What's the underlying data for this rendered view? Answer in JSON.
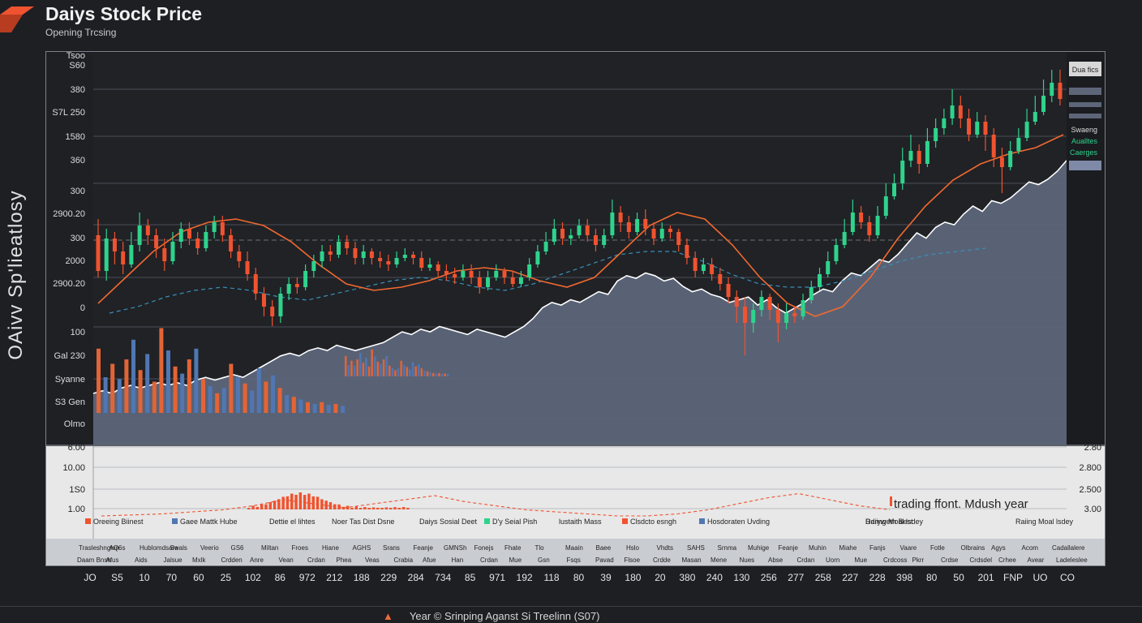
{
  "header": {
    "title": "Daiys Stock Price",
    "subtitle": "Opening Trcsing",
    "side_label": "OAivv Sp'lieatlosy"
  },
  "colors": {
    "background": "#1d1f23",
    "up": "#2fd38c",
    "down": "#f0532f",
    "ma": "#f2692f",
    "area": "#5d6679",
    "volume_up": "#5077b3",
    "volume_down": "#e36436",
    "dashed": "#3a8fb7"
  },
  "axes": {
    "y_main_labels": [
      "Tsoo",
      "S60",
      "380",
      "S7L 250",
      "1580",
      "360",
      "300",
      "2900.20",
      "300",
      "2000",
      "2900.20",
      "0",
      "100",
      "Gal 230",
      "Syanne",
      "S3 Gen",
      "Olmo"
    ],
    "y_lower_labels": [
      "6.00",
      "10.00",
      "1S0",
      "1.00"
    ],
    "y_lower_right_labels": [
      "2.80",
      "2.800",
      "2.500",
      "3.00"
    ],
    "x_labels": [
      "JO",
      "S5",
      "10",
      "70",
      "60",
      "25",
      "102",
      "86",
      "972",
      "212",
      "188",
      "229",
      "284",
      "734",
      "85",
      "971",
      "192",
      "118",
      "80",
      "39",
      "180",
      "20",
      "380",
      "240",
      "130",
      "256",
      "277",
      "258",
      "227",
      "228",
      "398",
      "80",
      "50",
      "201",
      "FNP",
      "UO",
      "CO"
    ]
  },
  "right_panel": {
    "tag": "Dua fics",
    "items": [
      "Swaeng",
      "Aualltes",
      "Caerges"
    ]
  },
  "lower_panel": {
    "note": "trading ffont. Mdush year",
    "note_small": "Ddryweth Best",
    "legend": [
      {
        "label": "Oreeing Biinest",
        "color": "#f0532f"
      },
      {
        "label": "Gaee Mattk Hube",
        "color": "#5077b3"
      },
      {
        "label": "Dettie el lihtes",
        "color": "#e6e6e6"
      },
      {
        "label": "Noer Tas Dist Dsne",
        "color": "#e6e6e6"
      },
      {
        "label": "Daiys Sosial Deet",
        "color": "#e6e6e6"
      },
      {
        "label": "D'y Seial Pish",
        "color": "#2fd38c"
      },
      {
        "label": "lustaith Mass",
        "color": "#e6e6e6"
      },
      {
        "label": "Clsdcto esngh",
        "color": "#f0532f"
      },
      {
        "label": "Hosdoraten Uvding",
        "color": "#5077b3"
      },
      {
        "label": "Raiing Moal lsdey",
        "color": "#e6e6e6"
      }
    ],
    "table_row1": [
      "Trasleshnglan",
      "AQ6s",
      "Hublomdsare",
      "Swals",
      "Veerio",
      "GS6",
      "Miltan",
      "Froes",
      "Hiane",
      "AGHS",
      "Srans",
      "Feanje",
      "GMNSh",
      "Fonejs",
      "Fhate",
      "Tlo",
      "Maain",
      "Baee",
      "Hslo",
      "Vhdts",
      "SAHS",
      "Srnma",
      "Muhige",
      "Feanje",
      "Muhin",
      "Miahe",
      "Fanjs",
      "Vaare",
      "Fotle",
      "Olbrains",
      "Agys",
      "Acom",
      "Cadallalere"
    ],
    "table_row2": [
      "Daam Bnsh",
      "Afus",
      "Aids",
      "Jalsue",
      "Mxlk",
      "Crdden",
      "Anre",
      "Vean",
      "Crdan",
      "Phea",
      "Veas",
      "Crabia",
      "Afue",
      "Han",
      "Crdan",
      "Mue",
      "Gsn",
      "Fsqs",
      "Pavad",
      "Flsoe",
      "Crdde",
      "Masan",
      "Mene",
      "Nues",
      "Abse",
      "Crdan",
      "Uorn",
      "Mue",
      "Crdcoss",
      "Pkrr",
      "Crdse",
      "Crdsdel",
      "Crhee",
      "Avear",
      "Ladeleslee"
    ]
  },
  "footer": {
    "text": "Year © Srinping Aganst Si Treelinn (S07)"
  },
  "chart_data": {
    "type": "candlestick",
    "title": "Daiys Stock Price",
    "subtitle": "Opening Trcsing",
    "ylabel": "OAivv Sp'lieatlosy",
    "ylim": [
      0,
      100
    ],
    "grid": true,
    "candles": [
      {
        "o": 49,
        "c": 38,
        "h": 54,
        "l": 36
      },
      {
        "o": 38,
        "c": 48,
        "h": 51,
        "l": 35
      },
      {
        "o": 48,
        "c": 44,
        "h": 50,
        "l": 40
      },
      {
        "o": 44,
        "c": 40,
        "h": 47,
        "l": 37
      },
      {
        "o": 40,
        "c": 46,
        "h": 50,
        "l": 39
      },
      {
        "o": 46,
        "c": 52,
        "h": 56,
        "l": 44
      },
      {
        "o": 52,
        "c": 49,
        "h": 54,
        "l": 46
      },
      {
        "o": 49,
        "c": 45,
        "h": 51,
        "l": 42
      },
      {
        "o": 45,
        "c": 41,
        "h": 48,
        "l": 38
      },
      {
        "o": 41,
        "c": 47,
        "h": 50,
        "l": 40
      },
      {
        "o": 47,
        "c": 51,
        "h": 53,
        "l": 45
      },
      {
        "o": 51,
        "c": 48,
        "h": 53,
        "l": 46
      },
      {
        "o": 48,
        "c": 45,
        "h": 50,
        "l": 43
      },
      {
        "o": 45,
        "c": 50,
        "h": 52,
        "l": 44
      },
      {
        "o": 50,
        "c": 53,
        "h": 55,
        "l": 48
      },
      {
        "o": 53,
        "c": 49,
        "h": 55,
        "l": 47
      },
      {
        "o": 49,
        "c": 44,
        "h": 51,
        "l": 42
      },
      {
        "o": 44,
        "c": 41,
        "h": 46,
        "l": 39
      },
      {
        "o": 41,
        "c": 37,
        "h": 44,
        "l": 35
      },
      {
        "o": 37,
        "c": 31,
        "h": 39,
        "l": 29
      },
      {
        "o": 31,
        "c": 27,
        "h": 33,
        "l": 24
      },
      {
        "o": 27,
        "c": 24,
        "h": 29,
        "l": 21
      },
      {
        "o": 24,
        "c": 31,
        "h": 33,
        "l": 22
      },
      {
        "o": 31,
        "c": 34,
        "h": 36,
        "l": 29
      },
      {
        "o": 34,
        "c": 33,
        "h": 36,
        "l": 31
      },
      {
        "o": 33,
        "c": 38,
        "h": 40,
        "l": 32
      },
      {
        "o": 38,
        "c": 41,
        "h": 43,
        "l": 36
      },
      {
        "o": 41,
        "c": 44,
        "h": 46,
        "l": 39
      },
      {
        "o": 44,
        "c": 43,
        "h": 46,
        "l": 41
      },
      {
        "o": 43,
        "c": 47,
        "h": 49,
        "l": 42
      },
      {
        "o": 47,
        "c": 45,
        "h": 49,
        "l": 43
      },
      {
        "o": 45,
        "c": 42,
        "h": 47,
        "l": 40
      },
      {
        "o": 42,
        "c": 44,
        "h": 46,
        "l": 40
      },
      {
        "o": 44,
        "c": 42,
        "h": 45,
        "l": 40
      },
      {
        "o": 42,
        "c": 41,
        "h": 44,
        "l": 39
      },
      {
        "o": 41,
        "c": 40,
        "h": 43,
        "l": 38
      },
      {
        "o": 40,
        "c": 42,
        "h": 44,
        "l": 39
      },
      {
        "o": 42,
        "c": 43,
        "h": 45,
        "l": 41
      },
      {
        "o": 43,
        "c": 42,
        "h": 44,
        "l": 40
      },
      {
        "o": 42,
        "c": 39,
        "h": 44,
        "l": 38
      },
      {
        "o": 39,
        "c": 40,
        "h": 42,
        "l": 38
      },
      {
        "o": 40,
        "c": 38,
        "h": 41,
        "l": 36
      },
      {
        "o": 38,
        "c": 37,
        "h": 40,
        "l": 35
      },
      {
        "o": 37,
        "c": 36,
        "h": 39,
        "l": 34
      },
      {
        "o": 36,
        "c": 38,
        "h": 40,
        "l": 35
      },
      {
        "o": 38,
        "c": 36,
        "h": 40,
        "l": 34
      },
      {
        "o": 36,
        "c": 33,
        "h": 38,
        "l": 31
      },
      {
        "o": 33,
        "c": 36,
        "h": 38,
        "l": 32
      },
      {
        "o": 36,
        "c": 38,
        "h": 40,
        "l": 35
      },
      {
        "o": 38,
        "c": 36,
        "h": 39,
        "l": 34
      },
      {
        "o": 36,
        "c": 34,
        "h": 38,
        "l": 33
      },
      {
        "o": 34,
        "c": 36,
        "h": 38,
        "l": 33
      },
      {
        "o": 36,
        "c": 40,
        "h": 42,
        "l": 35
      },
      {
        "o": 40,
        "c": 44,
        "h": 46,
        "l": 39
      },
      {
        "o": 44,
        "c": 47,
        "h": 50,
        "l": 43
      },
      {
        "o": 47,
        "c": 51,
        "h": 54,
        "l": 46
      },
      {
        "o": 51,
        "c": 48,
        "h": 53,
        "l": 46
      },
      {
        "o": 48,
        "c": 49,
        "h": 51,
        "l": 46
      },
      {
        "o": 49,
        "c": 52,
        "h": 54,
        "l": 48
      },
      {
        "o": 52,
        "c": 49,
        "h": 54,
        "l": 47
      },
      {
        "o": 49,
        "c": 46,
        "h": 51,
        "l": 44
      },
      {
        "o": 46,
        "c": 49,
        "h": 51,
        "l": 45
      },
      {
        "o": 49,
        "c": 56,
        "h": 60,
        "l": 48
      },
      {
        "o": 56,
        "c": 53,
        "h": 58,
        "l": 50
      },
      {
        "o": 53,
        "c": 50,
        "h": 55,
        "l": 48
      },
      {
        "o": 50,
        "c": 54,
        "h": 56,
        "l": 49
      },
      {
        "o": 54,
        "c": 51,
        "h": 57,
        "l": 49
      },
      {
        "o": 51,
        "c": 48,
        "h": 53,
        "l": 46
      },
      {
        "o": 48,
        "c": 51,
        "h": 53,
        "l": 47
      },
      {
        "o": 51,
        "c": 50,
        "h": 52,
        "l": 48
      },
      {
        "o": 50,
        "c": 46,
        "h": 51,
        "l": 44
      },
      {
        "o": 46,
        "c": 42,
        "h": 48,
        "l": 40
      },
      {
        "o": 42,
        "c": 38,
        "h": 44,
        "l": 36
      },
      {
        "o": 38,
        "c": 40,
        "h": 42,
        "l": 37
      },
      {
        "o": 40,
        "c": 37,
        "h": 42,
        "l": 35
      },
      {
        "o": 37,
        "c": 34,
        "h": 39,
        "l": 32
      },
      {
        "o": 34,
        "c": 30,
        "h": 36,
        "l": 28
      },
      {
        "o": 30,
        "c": 27,
        "h": 32,
        "l": 22
      },
      {
        "o": 27,
        "c": 22,
        "h": 30,
        "l": 12
      },
      {
        "o": 22,
        "c": 26,
        "h": 28,
        "l": 19
      },
      {
        "o": 26,
        "c": 30,
        "h": 32,
        "l": 24
      },
      {
        "o": 30,
        "c": 26,
        "h": 31,
        "l": 23
      },
      {
        "o": 26,
        "c": 22,
        "h": 28,
        "l": 16
      },
      {
        "o": 22,
        "c": 25,
        "h": 28,
        "l": 20
      },
      {
        "o": 25,
        "c": 24,
        "h": 27,
        "l": 22
      },
      {
        "o": 24,
        "c": 29,
        "h": 31,
        "l": 23
      },
      {
        "o": 29,
        "c": 33,
        "h": 35,
        "l": 28
      },
      {
        "o": 33,
        "c": 37,
        "h": 39,
        "l": 32
      },
      {
        "o": 37,
        "c": 41,
        "h": 44,
        "l": 36
      },
      {
        "o": 41,
        "c": 46,
        "h": 48,
        "l": 40
      },
      {
        "o": 46,
        "c": 50,
        "h": 54,
        "l": 45
      },
      {
        "o": 50,
        "c": 56,
        "h": 60,
        "l": 49
      },
      {
        "o": 56,
        "c": 53,
        "h": 58,
        "l": 51
      },
      {
        "o": 53,
        "c": 49,
        "h": 55,
        "l": 47
      },
      {
        "o": 49,
        "c": 55,
        "h": 58,
        "l": 48
      },
      {
        "o": 55,
        "c": 61,
        "h": 65,
        "l": 54
      },
      {
        "o": 61,
        "c": 65,
        "h": 68,
        "l": 60
      },
      {
        "o": 65,
        "c": 72,
        "h": 76,
        "l": 63
      },
      {
        "o": 72,
        "c": 75,
        "h": 80,
        "l": 70
      },
      {
        "o": 75,
        "c": 71,
        "h": 77,
        "l": 68
      },
      {
        "o": 71,
        "c": 78,
        "h": 82,
        "l": 70
      },
      {
        "o": 78,
        "c": 82,
        "h": 85,
        "l": 76
      },
      {
        "o": 82,
        "c": 85,
        "h": 88,
        "l": 80
      },
      {
        "o": 85,
        "c": 89,
        "h": 94,
        "l": 83
      },
      {
        "o": 89,
        "c": 85,
        "h": 92,
        "l": 82
      },
      {
        "o": 85,
        "c": 80,
        "h": 88,
        "l": 78
      },
      {
        "o": 80,
        "c": 84,
        "h": 87,
        "l": 79
      },
      {
        "o": 84,
        "c": 80,
        "h": 86,
        "l": 75
      },
      {
        "o": 80,
        "c": 73,
        "h": 82,
        "l": 70
      },
      {
        "o": 73,
        "c": 70,
        "h": 76,
        "l": 62
      },
      {
        "o": 70,
        "c": 75,
        "h": 78,
        "l": 69
      },
      {
        "o": 75,
        "c": 79,
        "h": 82,
        "l": 74
      },
      {
        "o": 79,
        "c": 84,
        "h": 88,
        "l": 78
      },
      {
        "o": 84,
        "c": 87,
        "h": 92,
        "l": 83
      },
      {
        "o": 87,
        "c": 92,
        "h": 97,
        "l": 86
      },
      {
        "o": 92,
        "c": 96,
        "h": 100,
        "l": 90
      },
      {
        "o": 96,
        "c": 91,
        "h": 100,
        "l": 89
      }
    ],
    "volume": [
      {
        "v": 72,
        "up": false
      },
      {
        "v": 40,
        "up": true
      },
      {
        "v": 55,
        "up": false
      },
      {
        "v": 38,
        "up": true
      },
      {
        "v": 60,
        "up": false
      },
      {
        "v": 82,
        "up": true
      },
      {
        "v": 48,
        "up": false
      },
      {
        "v": 66,
        "up": true
      },
      {
        "v": 35,
        "up": false
      },
      {
        "v": 95,
        "up": false
      },
      {
        "v": 70,
        "up": true
      },
      {
        "v": 52,
        "up": false
      },
      {
        "v": 44,
        "up": true
      },
      {
        "v": 60,
        "up": false
      },
      {
        "v": 72,
        "up": true
      },
      {
        "v": 38,
        "up": false
      },
      {
        "v": 30,
        "up": true
      },
      {
        "v": 22,
        "up": false
      },
      {
        "v": 28,
        "up": true
      },
      {
        "v": 55,
        "up": false
      },
      {
        "v": 40,
        "up": true
      },
      {
        "v": 33,
        "up": false
      },
      {
        "v": 25,
        "up": true
      },
      {
        "v": 50,
        "up": true
      },
      {
        "v": 35,
        "up": false
      },
      {
        "v": 42,
        "up": true
      },
      {
        "v": 28,
        "up": false
      },
      {
        "v": 20,
        "up": true
      },
      {
        "v": 18,
        "up": false
      },
      {
        "v": 15,
        "up": true
      },
      {
        "v": 12,
        "up": false
      },
      {
        "v": 10,
        "up": true
      },
      {
        "v": 12,
        "up": false
      },
      {
        "v": 9,
        "up": true
      },
      {
        "v": 10,
        "up": false
      },
      {
        "v": 8,
        "up": true
      }
    ],
    "price_line": [
      10,
      11,
      10,
      12,
      13,
      12,
      13,
      14,
      13,
      14,
      13,
      15,
      16,
      15,
      16,
      17,
      16,
      18,
      20,
      22,
      24,
      25,
      24,
      26,
      27,
      26,
      28,
      27,
      26,
      27,
      28,
      29,
      31,
      33,
      32,
      34,
      33,
      35,
      34,
      33,
      32,
      34,
      33,
      32,
      31,
      33,
      35,
      38,
      42,
      44,
      43,
      45,
      44,
      46,
      48,
      47,
      52,
      54,
      53,
      55,
      54,
      52,
      53,
      50,
      48,
      49,
      47,
      46,
      44,
      45,
      46,
      43,
      45,
      42,
      40,
      42,
      44,
      47,
      49,
      48,
      52,
      55,
      54,
      57,
      60,
      59,
      62,
      66,
      70,
      68,
      72,
      74,
      73,
      77,
      80,
      78,
      82,
      81,
      83,
      86,
      89,
      88,
      90,
      93,
      97
    ],
    "ma_line": [
      28,
      36,
      44,
      50,
      53,
      54,
      52,
      47,
      40,
      34,
      32,
      33,
      35,
      38,
      39,
      38,
      35,
      33,
      36,
      44,
      52,
      56,
      54,
      46,
      36,
      28,
      24,
      27,
      36,
      48,
      58,
      66,
      71,
      74,
      76,
      80
    ],
    "dashed_line": [
      25,
      27,
      30,
      32,
      33,
      32,
      30,
      29,
      31,
      33,
      35,
      36,
      35,
      33,
      32,
      34,
      37,
      40,
      43,
      44,
      44,
      41,
      37,
      34,
      33,
      33,
      35,
      38,
      41,
      43,
      44,
      45
    ],
    "lower_series": [
      1.0,
      1.05,
      1.1,
      1.2,
      1.3,
      1.5,
      1.8,
      1.6,
      1.4,
      1.6,
      1.8,
      2.0,
      1.7,
      1.5,
      1.3,
      1.2,
      1.1,
      1.0,
      1.0,
      1.1,
      1.3,
      1.6,
      1.9,
      2.1,
      1.8,
      1.5,
      1.3
    ]
  }
}
